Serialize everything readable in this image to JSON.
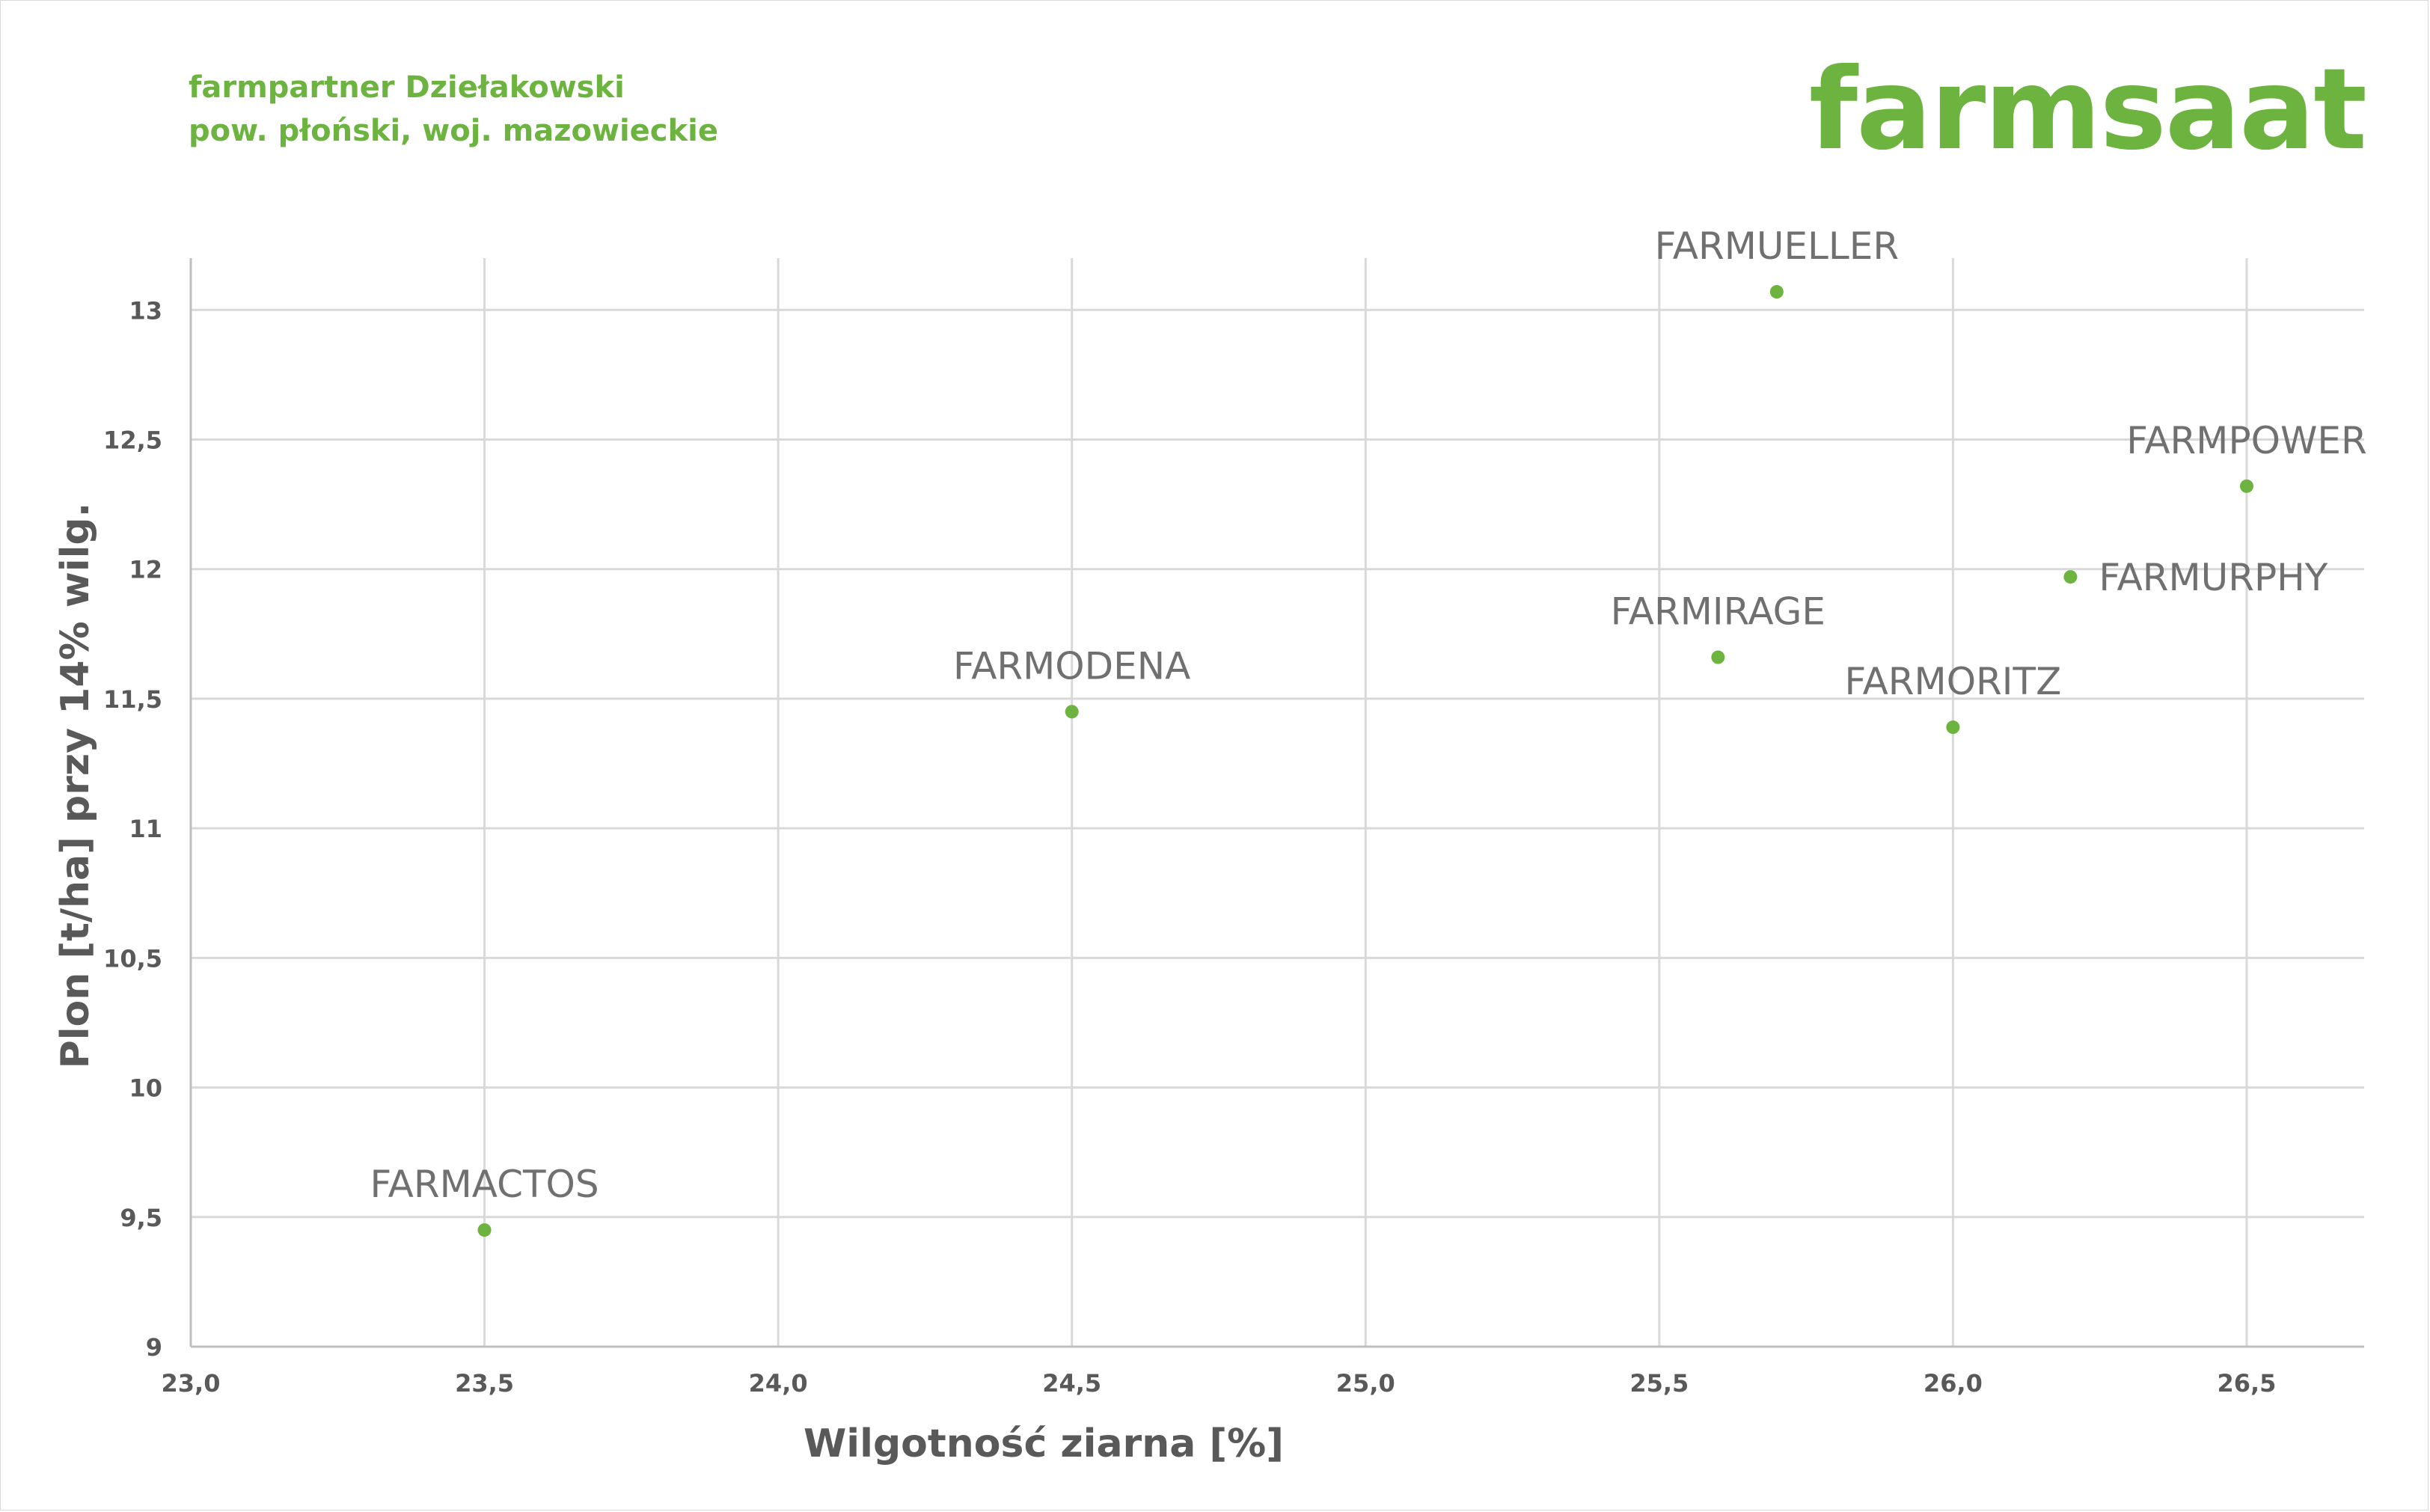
{
  "header": {
    "line1": "farmpartner Dziełakowski",
    "line2": "pow. płoński, woj. mazowieckie"
  },
  "logo": {
    "text": "farmsaat"
  },
  "colors": {
    "brand": "#6cb33f",
    "grid": "#d9d9d9",
    "axis_text": "#595959",
    "label_text": "#707070"
  },
  "chart_data": {
    "type": "scatter",
    "xlabel": "Wilgotność ziarna [%]",
    "ylabel": "Plon [t/ha] przy 14% wilg.",
    "xlim": [
      23.0,
      26.7
    ],
    "ylim": [
      9,
      13.2
    ],
    "x_ticks": [
      {
        "value": 23.0,
        "label": "23,0"
      },
      {
        "value": 23.5,
        "label": "23,5"
      },
      {
        "value": 24.0,
        "label": "24,0"
      },
      {
        "value": 24.5,
        "label": "24,5"
      },
      {
        "value": 25.0,
        "label": "25,0"
      },
      {
        "value": 25.5,
        "label": "25,5"
      },
      {
        "value": 26.0,
        "label": "26,0"
      },
      {
        "value": 26.5,
        "label": "26,5"
      }
    ],
    "y_ticks": [
      {
        "value": 9,
        "label": "9"
      },
      {
        "value": 9.5,
        "label": "9,5"
      },
      {
        "value": 10,
        "label": "10"
      },
      {
        "value": 10.5,
        "label": "10,5"
      },
      {
        "value": 11,
        "label": "11"
      },
      {
        "value": 11.5,
        "label": "11,5"
      },
      {
        "value": 12,
        "label": "12"
      },
      {
        "value": 12.5,
        "label": "12,5"
      },
      {
        "value": 13,
        "label": "13"
      }
    ],
    "grid": true,
    "points": [
      {
        "name": "FARMACTOS",
        "x": 23.5,
        "y": 9.45,
        "label_pos": "above"
      },
      {
        "name": "FARMODENA",
        "x": 24.5,
        "y": 11.45,
        "label_pos": "above"
      },
      {
        "name": "FARMIRAGE",
        "x": 25.6,
        "y": 11.66,
        "label_pos": "above"
      },
      {
        "name": "FARMUELLER",
        "x": 25.7,
        "y": 13.07,
        "label_pos": "above"
      },
      {
        "name": "FARMORITZ",
        "x": 26.0,
        "y": 11.39,
        "label_pos": "above"
      },
      {
        "name": "FARMURPHY",
        "x": 26.2,
        "y": 11.97,
        "label_pos": "right"
      },
      {
        "name": "FARMPOWER",
        "x": 26.5,
        "y": 12.32,
        "label_pos": "above"
      }
    ]
  }
}
